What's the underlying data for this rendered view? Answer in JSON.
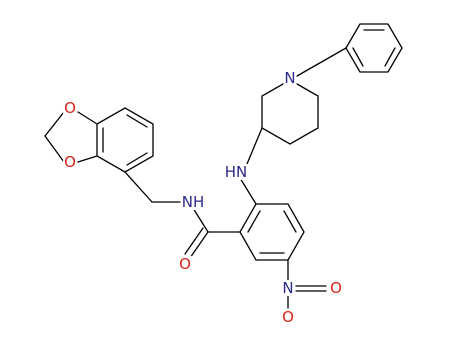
{
  "atoms": [
    {
      "label": "O"
    },
    {
      "label": "O"
    },
    {
      "label": "NH"
    },
    {
      "label": "O"
    },
    {
      "label": "HN"
    },
    {
      "label": "N"
    },
    {
      "label": "N"
    },
    {
      "label": "O"
    },
    {
      "label": "O"
    }
  ]
}
